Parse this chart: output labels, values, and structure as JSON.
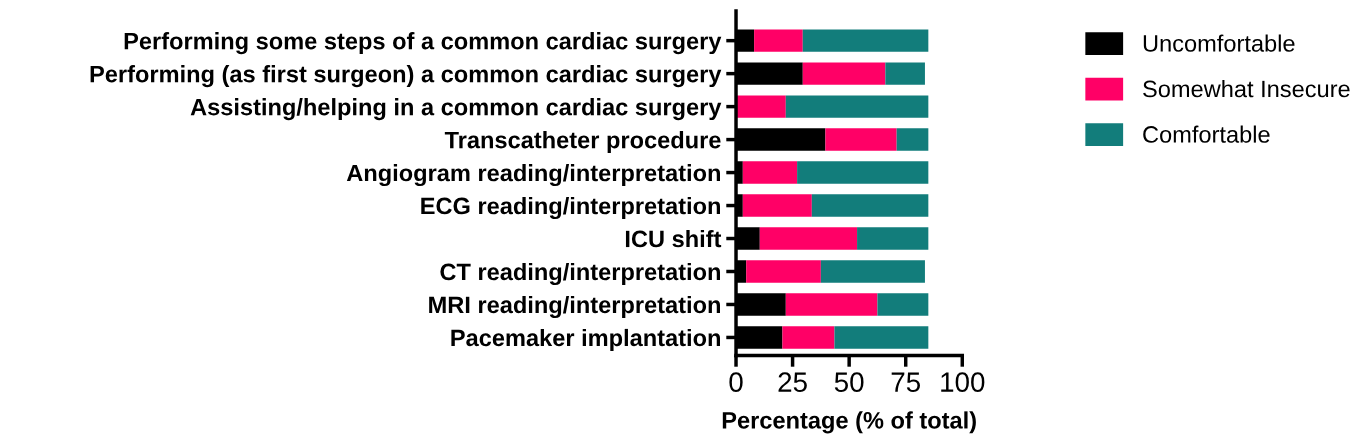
{
  "chart_data": {
    "type": "bar",
    "orientation": "horizontal",
    "stacked": true,
    "categories": [
      "Performing some steps of a common cardiac surgery",
      "Performing (as first surgeon) a common cardiac surgery",
      "Assisting/helping in a common cardiac surgery",
      "Transcatheter procedure",
      "Angiogram reading/interpretation",
      "ECG reading/interpretation",
      "ICU shift",
      "CT reading/interpretation",
      "MRI reading/interpretation",
      "Pacemaker implantation"
    ],
    "series": [
      {
        "name": "Uncomfortable",
        "color": "#000000",
        "values": [
          8,
          29.5,
          0,
          39.5,
          3,
          3,
          10.5,
          4.5,
          22,
          20.5
        ]
      },
      {
        "name": "Somewhat Insecure",
        "color": "#ff0066",
        "values": [
          21.5,
          36.5,
          22,
          31.5,
          24,
          30.5,
          43,
          33,
          40.5,
          23
        ]
      },
      {
        "name": "Comfortable",
        "color": "#127d7b",
        "values": [
          55.5,
          17.5,
          63,
          14,
          58,
          51.5,
          31.5,
          46,
          22.5,
          41.5
        ]
      }
    ],
    "xlim": [
      0,
      100
    ],
    "xticks": [
      0,
      25,
      50,
      75,
      100
    ],
    "xlabel": "Percentage (% of total)",
    "legend": "top right",
    "grid": false
  }
}
